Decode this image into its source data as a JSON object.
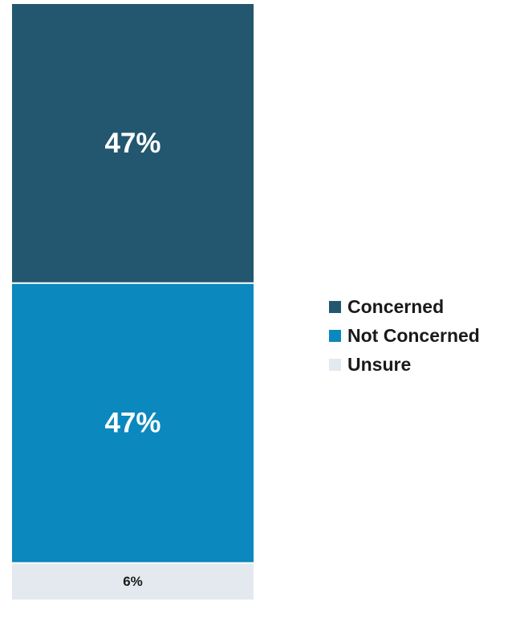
{
  "chart_data": {
    "type": "bar",
    "stacked": true,
    "categories": [
      ""
    ],
    "series": [
      {
        "name": "Concerned",
        "values": [
          47
        ],
        "label": "47%",
        "color": "#23566f",
        "label_color": "#ffffff"
      },
      {
        "name": "Not Concerned",
        "values": [
          47
        ],
        "label": "47%",
        "color": "#0b88bd",
        "label_color": "#ffffff"
      },
      {
        "name": "Unsure",
        "values": [
          6
        ],
        "label": "6%",
        "color": "#e3e9ef",
        "label_color": "#1a1a1a"
      }
    ],
    "ylim": [
      0,
      100
    ],
    "grid": false,
    "legend_position": "right"
  }
}
